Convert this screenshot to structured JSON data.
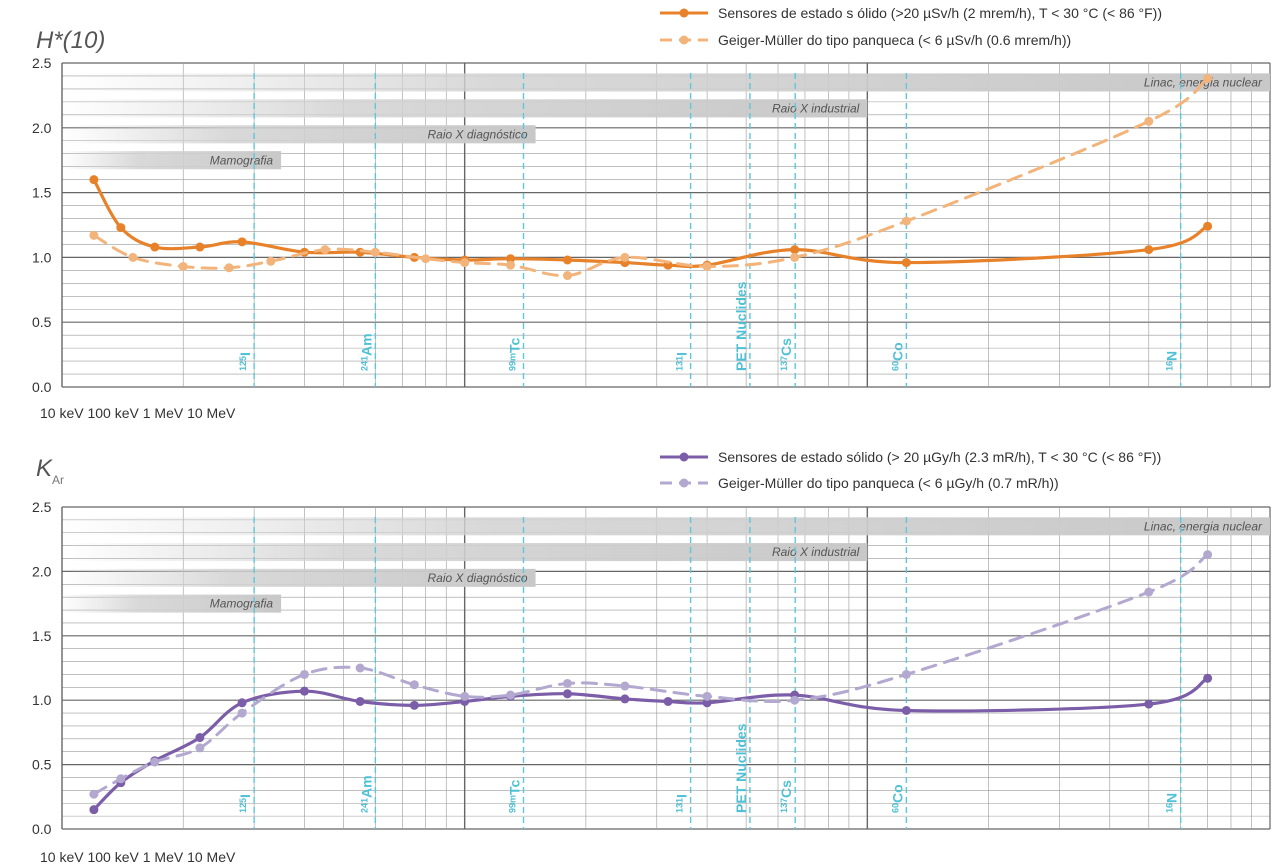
{
  "chart_data": [
    {
      "type": "line",
      "title": "H*(10)",
      "title_main": "H*(10)",
      "title_sub": "",
      "yticks": [
        "0.0",
        "0.5",
        "1.0",
        "1.5",
        "2.0",
        "2.5"
      ],
      "ylim": [
        0,
        2.5
      ],
      "x_axis_label": "10 keV 100 keV 1 MeV 10 MeV",
      "x_scale": "log",
      "xlim_kev": [
        10,
        10000
      ],
      "bands": [
        {
          "label": "Linac, energia nuclear",
          "x_end_kev": 10000,
          "y": 2.35
        },
        {
          "label": "Raio X industrial",
          "x_end_kev": 1000,
          "y": 2.15
        },
        {
          "label": "Raio X diagnóstico",
          "x_end_kev": 150,
          "y": 1.95
        },
        {
          "label": "Mamografia",
          "x_end_kev": 35,
          "y": 1.75
        }
      ],
      "nuclides": [
        {
          "label": "125I",
          "mass": "125",
          "sym": "I",
          "x_kev": 30
        },
        {
          "label": "241Am",
          "mass": "241",
          "sym": "Am",
          "x_kev": 60
        },
        {
          "label": "99mTc",
          "mass": "99m",
          "sym": "Tc",
          "x_kev": 140
        },
        {
          "label": "131I",
          "mass": "131",
          "sym": "I",
          "x_kev": 364
        },
        {
          "label": "PET Nuclides",
          "mass": "",
          "sym": "PET Nuclides",
          "x_kev": 511
        },
        {
          "label": "137Cs",
          "mass": "137",
          "sym": "Cs",
          "x_kev": 662
        },
        {
          "label": "60Co",
          "mass": "60",
          "sym": "Co",
          "x_kev": 1250
        },
        {
          "label": "16N",
          "mass": "16",
          "sym": "N",
          "x_kev": 6000
        }
      ],
      "series": [
        {
          "name": "Sensores de estado s ólido (>20 µSv/h (2 mrem/h), T < 30 °C (< 86 °F))",
          "color": "#e8822a",
          "dashed": false,
          "x": [
            12,
            14,
            17,
            22,
            28,
            40,
            55,
            75,
            100,
            130,
            180,
            250,
            320,
            400,
            660,
            1250,
            5000,
            7000
          ],
          "y": [
            1.6,
            1.23,
            1.08,
            1.08,
            1.12,
            1.04,
            1.04,
            1.0,
            0.98,
            0.99,
            0.98,
            0.96,
            0.94,
            0.94,
            1.06,
            0.96,
            1.06,
            1.24
          ]
        },
        {
          "name": "Geiger-Müller do tipo panqueca (< 6 µSv/h (0.6 mrem/h))",
          "color": "#f2b47a",
          "dashed": true,
          "x": [
            12,
            15,
            20,
            26,
            33,
            45,
            60,
            80,
            100,
            130,
            180,
            250,
            400,
            660,
            1250,
            5000,
            7000
          ],
          "y": [
            1.17,
            1.0,
            0.93,
            0.92,
            0.97,
            1.06,
            1.04,
            0.99,
            0.96,
            0.94,
            0.86,
            1.0,
            0.93,
            1.0,
            1.28,
            2.05,
            2.38
          ]
        }
      ],
      "legend_position": "top-right"
    },
    {
      "type": "line",
      "title": "KAr",
      "title_main": "K",
      "title_sub": "Ar",
      "yticks": [
        "0.0",
        "0.5",
        "1.0",
        "1.5",
        "2.0",
        "2.5"
      ],
      "ylim": [
        0,
        2.5
      ],
      "x_axis_label": "10 keV 100 keV 1 MeV 10 MeV",
      "x_scale": "log",
      "xlim_kev": [
        10,
        10000
      ],
      "bands": [
        {
          "label": "Linac, energia nuclear",
          "x_end_kev": 10000,
          "y": 2.35
        },
        {
          "label": "Raio X industrial",
          "x_end_kev": 1000,
          "y": 2.15
        },
        {
          "label": "Raio X diagnóstico",
          "x_end_kev": 150,
          "y": 1.95
        },
        {
          "label": "Mamografia",
          "x_end_kev": 35,
          "y": 1.75
        }
      ],
      "nuclides": [
        {
          "label": "125I",
          "mass": "125",
          "sym": "I",
          "x_kev": 30
        },
        {
          "label": "241Am",
          "mass": "241",
          "sym": "Am",
          "x_kev": 60
        },
        {
          "label": "99mTc",
          "mass": "99m",
          "sym": "Tc",
          "x_kev": 140
        },
        {
          "label": "131I",
          "mass": "131",
          "sym": "I",
          "x_kev": 364
        },
        {
          "label": "PET Nuclides",
          "mass": "",
          "sym": "PET Nuclides",
          "x_kev": 511
        },
        {
          "label": "137Cs",
          "mass": "137",
          "sym": "Cs",
          "x_kev": 662
        },
        {
          "label": "60Co",
          "mass": "60",
          "sym": "Co",
          "x_kev": 1250
        },
        {
          "label": "16N",
          "mass": "16",
          "sym": "N",
          "x_kev": 6000
        }
      ],
      "series": [
        {
          "name": "Sensores de estado sólido (> 20 µGy/h (2.3 mR/h), T < 30 °C (< 86 °F))",
          "color": "#7b5ea7",
          "dashed": false,
          "x": [
            12,
            14,
            17,
            22,
            28,
            40,
            55,
            75,
            100,
            130,
            180,
            250,
            320,
            400,
            660,
            1250,
            5000,
            7000
          ],
          "y": [
            0.15,
            0.36,
            0.53,
            0.71,
            0.98,
            1.07,
            0.99,
            0.96,
            0.99,
            1.03,
            1.05,
            1.01,
            0.99,
            0.98,
            1.04,
            0.92,
            0.97,
            1.17
          ]
        },
        {
          "name": "Geiger-Müller do tipo panqueca (< 6 µGy/h (0.7 mR/h))",
          "color": "#b3a8cf",
          "dashed": true,
          "x": [
            12,
            14,
            17,
            22,
            28,
            40,
            55,
            75,
            100,
            130,
            180,
            250,
            400,
            660,
            1250,
            5000,
            7000
          ],
          "y": [
            0.27,
            0.39,
            0.52,
            0.63,
            0.9,
            1.2,
            1.25,
            1.12,
            1.03,
            1.04,
            1.13,
            1.11,
            1.03,
            1.0,
            1.2,
            1.84,
            2.13
          ]
        }
      ],
      "legend_position": "top-right"
    }
  ]
}
